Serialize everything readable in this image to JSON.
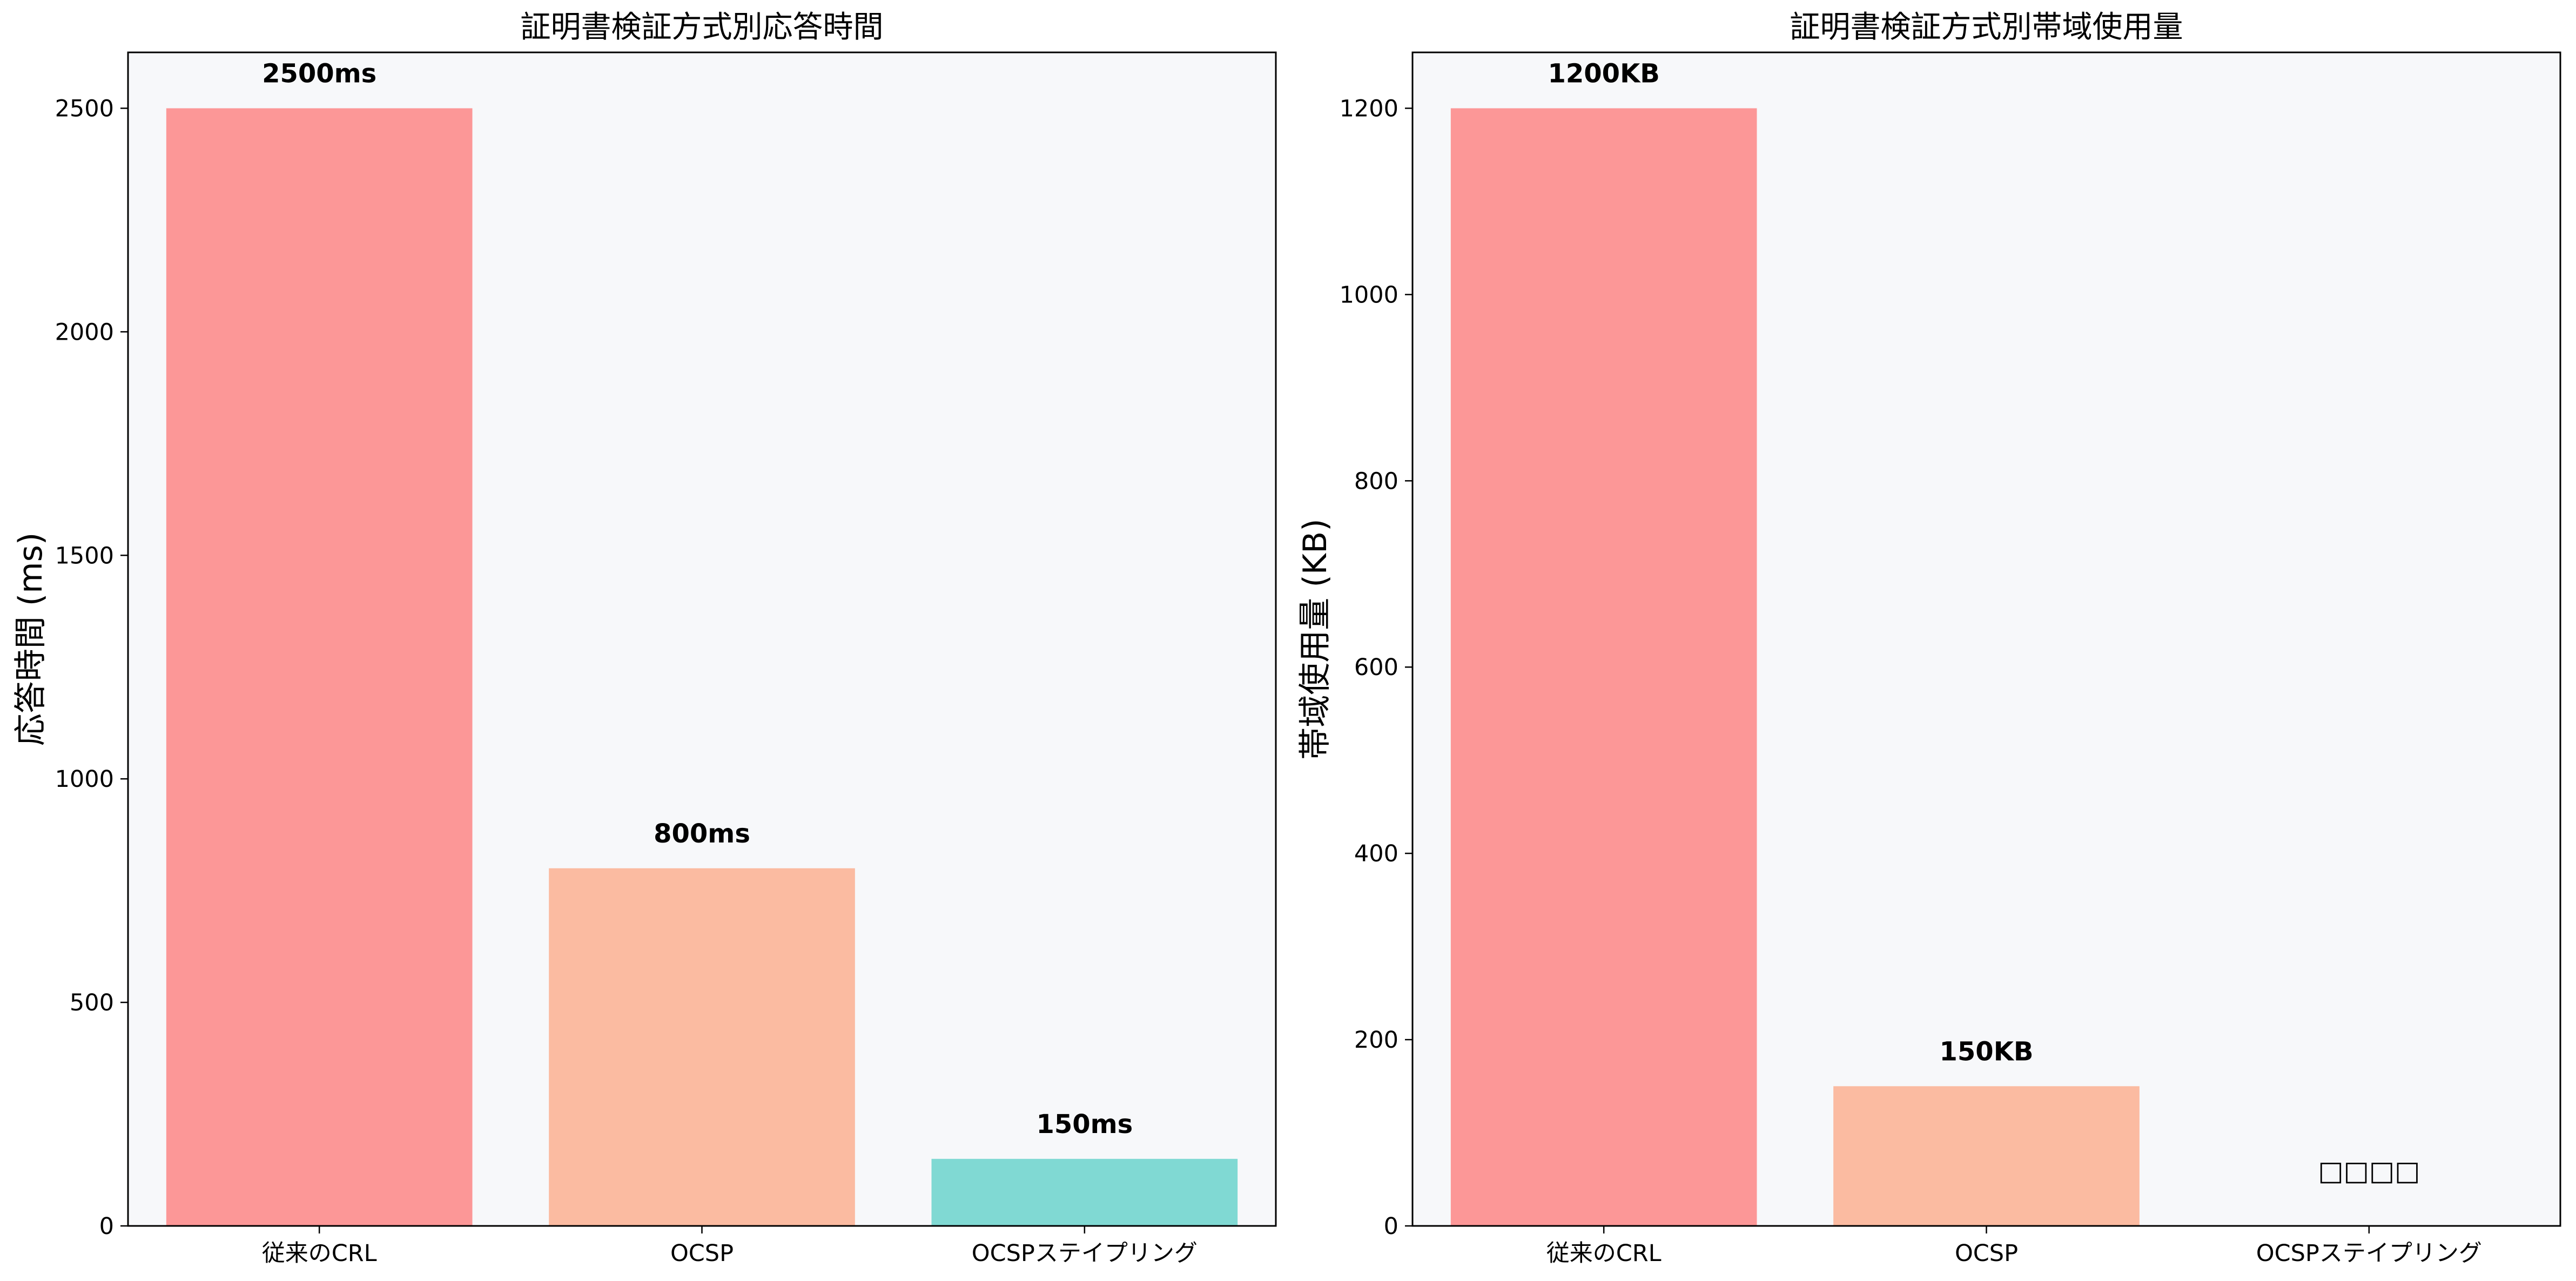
{
  "chart_data": [
    {
      "type": "bar",
      "title": "証明書検証方式別応答時間",
      "xlabel": "",
      "ylabel": "応答時間 (ms)",
      "categories": [
        "従来のCRL",
        "OCSP",
        "OCSPステイプリング"
      ],
      "values": [
        2500,
        800,
        150
      ],
      "data_labels": [
        "2500ms",
        "800ms",
        "150ms"
      ],
      "colors": [
        "#fc9797",
        "#fbbba1",
        "#80d9d3"
      ],
      "ylim": [
        0,
        2625
      ],
      "yticks": [
        0,
        500,
        1000,
        1500,
        2000,
        2500
      ],
      "grid": false,
      "background": "#f7f8fa"
    },
    {
      "type": "bar",
      "title": "証明書検証方式別帯域使用量",
      "xlabel": "",
      "ylabel": "帯域使用量 (KB)",
      "categories": [
        "従来のCRL",
        "OCSP",
        "OCSPステイプリング"
      ],
      "values": [
        1200,
        150,
        0
      ],
      "data_labels": [
        "1200KB",
        "150KB",
        "□□□□"
      ],
      "colors": [
        "#fc9797",
        "#fbbba1",
        "#80d9d3"
      ],
      "ylim": [
        0,
        1260
      ],
      "yticks": [
        0,
        200,
        400,
        600,
        800,
        1000,
        1200
      ],
      "grid": false,
      "background": "#f7f8fa"
    }
  ]
}
